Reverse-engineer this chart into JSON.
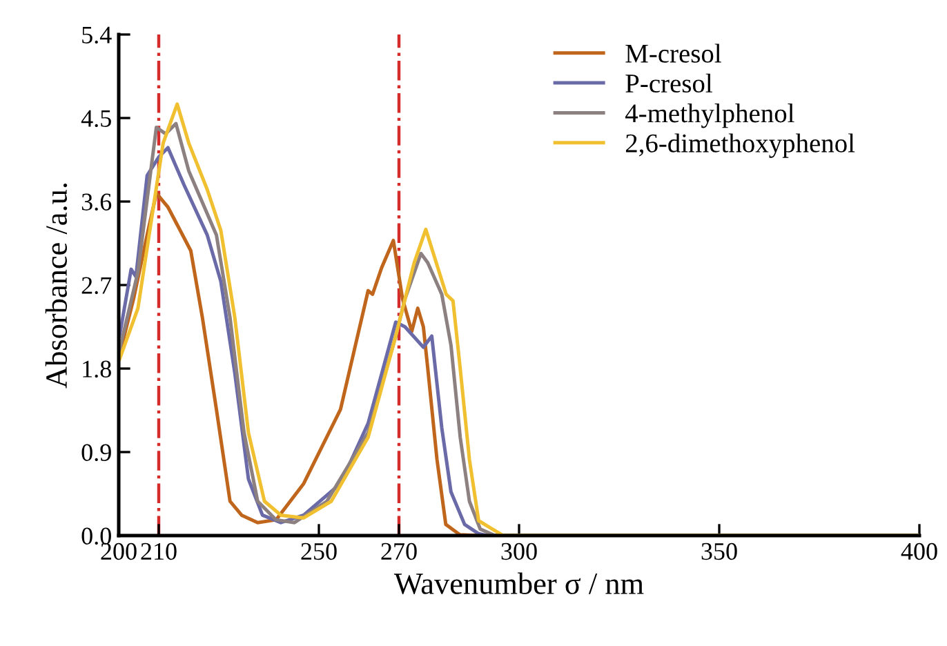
{
  "chart_data": {
    "type": "line",
    "xlabel": "Wavenumber σ / nm",
    "ylabel": "Absorbance /a.u.",
    "xlim": [
      200,
      400
    ],
    "xticks": [
      200,
      210,
      250,
      270,
      300,
      350,
      400
    ],
    "ylim": [
      0,
      5.4
    ],
    "yticks": [
      {
        "value": 0,
        "label": "0.0"
      },
      0.9,
      1.8,
      2.7,
      3.6,
      4.5,
      5.4
    ],
    "grid": false,
    "legend": "top right",
    "marker": "none",
    "line_style": "solid",
    "ref_lines": [
      {
        "axis": "x",
        "value": 210,
        "color": "#d62b2b",
        "line_style": "dashdot"
      },
      {
        "axis": "x",
        "value": 270,
        "color": "#d62b2b",
        "line_style": "dashdot"
      }
    ],
    "series": [
      {
        "name": "M-cresol",
        "color": "#c0661c",
        "x": [
          200.2,
          203.7,
          207.1,
          209.4,
          212.3,
          218.0,
          220.9,
          224.4,
          227.8,
          230.7,
          234.7,
          239.3,
          246.2,
          255.4,
          262.3,
          263.4,
          265.7,
          268.6,
          270.9,
          273.2,
          274.7,
          276.1,
          277.2,
          279.5,
          281.7,
          285.2,
          290,
          400
        ],
        "values": [
          1.95,
          2.55,
          3.24,
          3.69,
          3.54,
          3.07,
          2.35,
          1.36,
          0.37,
          0.22,
          0.14,
          0.17,
          0.56,
          1.36,
          2.64,
          2.6,
          2.89,
          3.18,
          2.55,
          2.2,
          2.45,
          2.25,
          1.8,
          0.82,
          0.12,
          0.01,
          0,
          0
        ]
      },
      {
        "name": "P-cresol",
        "color": "#6a6aa8",
        "x": [
          200.2,
          203.1,
          204.3,
          207.1,
          210.0,
          212.3,
          216.3,
          222.1,
          225.5,
          229.0,
          232.4,
          235.9,
          240.5,
          246.2,
          255.4,
          262.3,
          269.2,
          271.5,
          276.1,
          278.2,
          280.7,
          283.0,
          286.4,
          289.9,
          292,
          400
        ],
        "values": [
          2.15,
          2.87,
          2.79,
          3.88,
          4.08,
          4.18,
          3.78,
          3.24,
          2.74,
          1.75,
          0.61,
          0.22,
          0.14,
          0.22,
          0.56,
          1.21,
          2.3,
          2.25,
          2.03,
          2.15,
          1.16,
          0.47,
          0.12,
          0.02,
          0,
          0
        ]
      },
      {
        "name": "4-methylphenol",
        "color": "#8c8080",
        "x": [
          200.2,
          204.8,
          208.3,
          209.4,
          211.7,
          214.3,
          217.5,
          224.4,
          227.8,
          231.3,
          234.7,
          239.3,
          243.9,
          252.0,
          262.3,
          269.2,
          271.5,
          275.5,
          277.2,
          280.7,
          283.0,
          285.3,
          287.6,
          290.3,
          294,
          400
        ],
        "values": [
          2.0,
          2.84,
          4.03,
          4.4,
          4.33,
          4.44,
          3.93,
          3.24,
          2.35,
          1.11,
          0.37,
          0.17,
          0.14,
          0.37,
          1.11,
          2.15,
          2.55,
          3.04,
          2.94,
          2.6,
          2.05,
          1.06,
          0.37,
          0.07,
          0,
          0
        ]
      },
      {
        "name": "2,6-dimethoxyphenol",
        "color": "#f0c030",
        "x": [
          200.2,
          204.8,
          208.3,
          211.1,
          214.6,
          217.5,
          222.1,
          225.5,
          229.0,
          232.4,
          236.4,
          240.5,
          246.2,
          253.1,
          262.3,
          269.2,
          273.8,
          276.7,
          281.8,
          283.5,
          285.3,
          287.6,
          289.9,
          296,
          400
        ],
        "values": [
          1.9,
          2.45,
          3.44,
          4.23,
          4.65,
          4.23,
          3.73,
          3.29,
          2.35,
          1.11,
          0.37,
          0.22,
          0.19,
          0.37,
          1.06,
          2.15,
          2.94,
          3.3,
          2.6,
          2.53,
          1.8,
          0.82,
          0.16,
          0,
          0
        ]
      }
    ]
  }
}
